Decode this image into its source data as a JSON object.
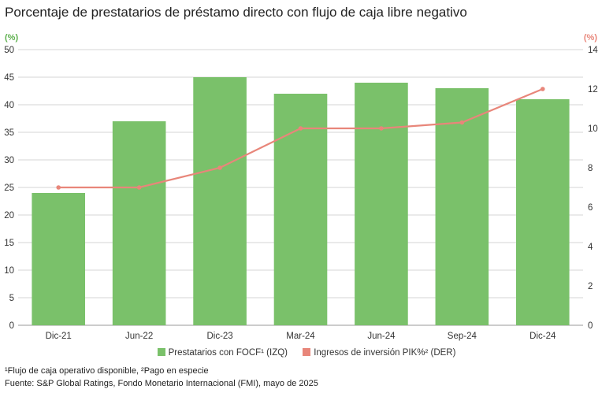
{
  "title": "Porcentaje de prestatarios de préstamo directo con flujo de caja libre negativo",
  "chart_data": {
    "type": "bar",
    "categories": [
      "Dic-21",
      "Jun-22",
      "Dic-23",
      "Mar-24",
      "Jun-24",
      "Sep-24",
      "Dic-24"
    ],
    "series": [
      {
        "name": "Prestatarios con FOCF¹ (IZQ)",
        "type": "bar",
        "axis": "left",
        "values": [
          24,
          37,
          45,
          42,
          44,
          43,
          41
        ],
        "color": "#7ac16a"
      },
      {
        "name": "Ingresos de inversión PIK%² (DER)",
        "type": "line",
        "axis": "right",
        "values": [
          7,
          7,
          8,
          10,
          10,
          10.3,
          12
        ],
        "color": "#e8867a"
      }
    ],
    "left_axis": {
      "unit": "(%)",
      "ylim": [
        0,
        50
      ],
      "ticks": [
        0,
        5,
        10,
        15,
        20,
        25,
        30,
        35,
        40,
        45,
        50
      ],
      "color": "#5db04d"
    },
    "right_axis": {
      "unit": "(%)",
      "ylim": [
        0,
        14
      ],
      "ticks": [
        0,
        2,
        4,
        6,
        8,
        10,
        12,
        14
      ],
      "color": "#e8867a"
    },
    "grid": true,
    "legend_position": "bottom"
  },
  "footnotes": {
    "line1": "¹Flujo de caja operativo disponible, ²Pago en especie",
    "line2": "Fuente: S&P Global Ratings, Fondo Monetario Internacional (FMI), mayo de 2025"
  }
}
